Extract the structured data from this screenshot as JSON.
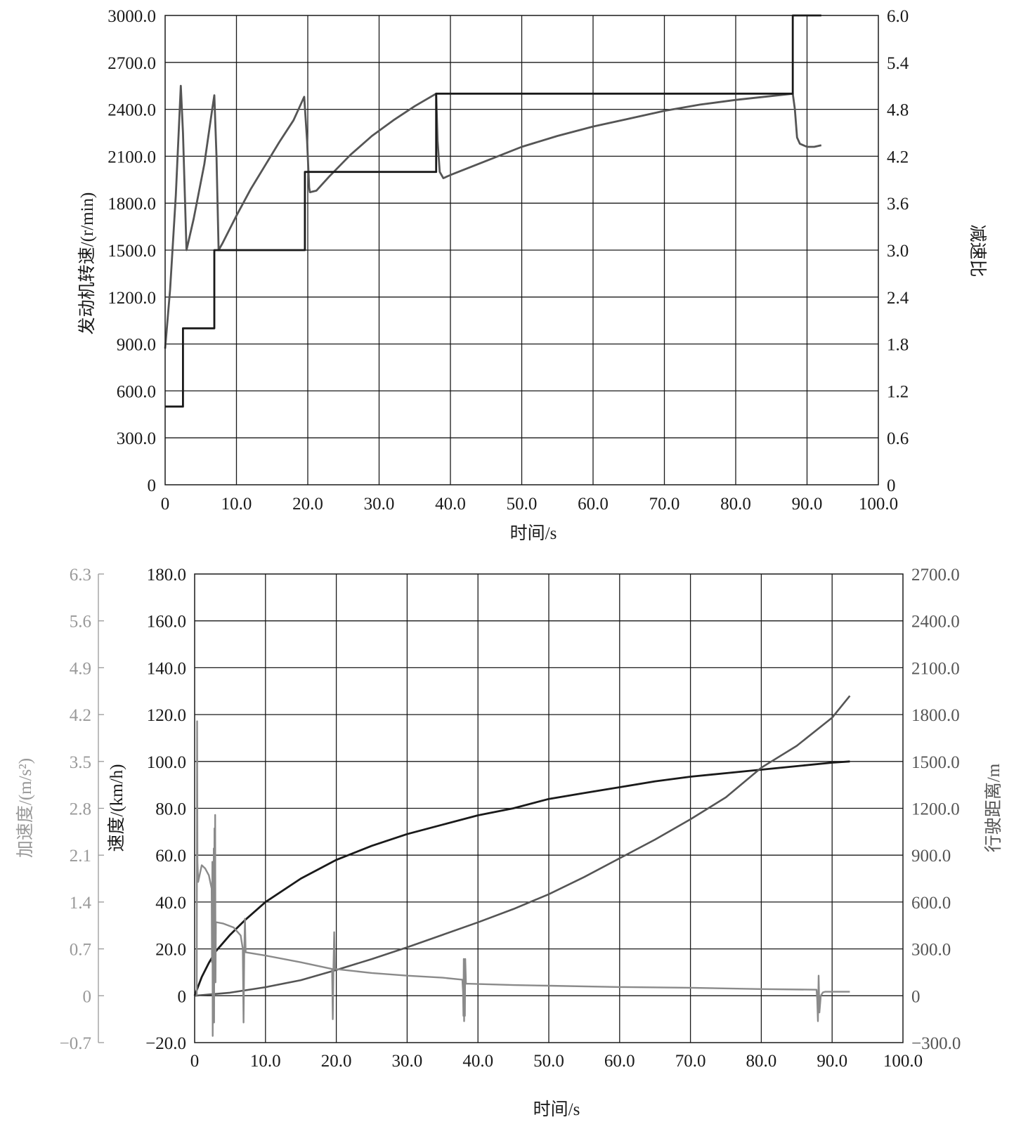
{
  "chart_data": [
    {
      "type": "line",
      "xlabel": "时间/s",
      "ylabel_left": "发动机转速/(r/min)",
      "ylabel_right": "减速比",
      "xlim": [
        0,
        100
      ],
      "ylim_left": [
        0,
        3000
      ],
      "ylim_right": [
        0,
        6
      ],
      "grid": true,
      "x_ticks": [
        "0",
        "10.0",
        "20.0",
        "30.0",
        "40.0",
        "50.0",
        "60.0",
        "70.0",
        "80.0",
        "90.0",
        "100.0"
      ],
      "y_left_ticks": [
        "0",
        "300.0",
        "600.0",
        "900.0",
        "1200.0",
        "1500.0",
        "1800.0",
        "2100.0",
        "2400.0",
        "2700.0",
        "3000.0"
      ],
      "y_right_ticks": [
        "0",
        "0.6",
        "1.2",
        "1.8",
        "2.4",
        "3.0",
        "3.6",
        "4.2",
        "4.8",
        "5.4",
        "6.0"
      ],
      "colors": {
        "engine_speed": "#555555",
        "reduction_ratio": "#1a1a1a"
      },
      "series": [
        {
          "axis": "left",
          "points": [
            [
              0,
              870
            ],
            [
              0.7,
              1250
            ],
            [
              1.5,
              1850
            ],
            [
              2.2,
              2550
            ],
            [
              2.5,
              2250
            ],
            [
              2.9,
              1650
            ],
            [
              3.0,
              1500
            ],
            [
              4.0,
              1700
            ],
            [
              5.5,
              2050
            ],
            [
              6.6,
              2400
            ],
            [
              6.9,
              2490
            ],
            [
              7.2,
              2100
            ],
            [
              7.5,
              1500
            ],
            [
              8.0,
              1540
            ],
            [
              10,
              1720
            ],
            [
              12,
              1890
            ],
            [
              14,
              2040
            ],
            [
              16,
              2190
            ],
            [
              18,
              2330
            ],
            [
              19.5,
              2480
            ],
            [
              19.9,
              2200
            ],
            [
              20.2,
              1900
            ],
            [
              20.3,
              1870
            ],
            [
              21.2,
              1880
            ],
            [
              23,
              1970
            ],
            [
              26,
              2110
            ],
            [
              29,
              2230
            ],
            [
              32,
              2330
            ],
            [
              35,
              2420
            ],
            [
              38,
              2500
            ],
            [
              38.2,
              2200
            ],
            [
              38.5,
              2000
            ],
            [
              39,
              1960
            ],
            [
              40,
              1980
            ],
            [
              45,
              2070
            ],
            [
              50,
              2160
            ],
            [
              55,
              2230
            ],
            [
              60,
              2290
            ],
            [
              65,
              2340
            ],
            [
              70,
              2390
            ],
            [
              75,
              2430
            ],
            [
              80,
              2460
            ],
            [
              85,
              2485
            ],
            [
              88,
              2500
            ],
            [
              88.3,
              2400
            ],
            [
              88.6,
              2220
            ],
            [
              89,
              2180
            ],
            [
              90,
              2160
            ],
            [
              91,
              2160
            ],
            [
              92,
              2170
            ]
          ]
        },
        {
          "axis": "right",
          "points": [
            [
              0,
              1.0
            ],
            [
              2.5,
              1.0
            ],
            [
              2.5,
              2.0
            ],
            [
              6.9,
              2.0
            ],
            [
              6.9,
              3.0
            ],
            [
              19.6,
              3.0
            ],
            [
              19.6,
              4.0
            ],
            [
              38,
              4.0
            ],
            [
              38,
              5.0
            ],
            [
              88,
              5.0
            ],
            [
              88,
              6.0
            ],
            [
              92,
              6.0
            ]
          ]
        }
      ]
    },
    {
      "type": "line",
      "xlabel": "时间/s",
      "ylabel_left_outer": "加速度/(m/s²)",
      "ylabel_left": "速度/(km/h)",
      "ylabel_right": "行驶距离/m",
      "xlim": [
        0,
        100
      ],
      "ylim_left": [
        -20,
        180
      ],
      "ylim_left_outer": [
        -0.7,
        6.3
      ],
      "ylim_right": [
        -300,
        2700
      ],
      "grid": true,
      "x_ticks": [
        "0",
        "10.0",
        "20.0",
        "30.0",
        "40.0",
        "50.0",
        "60.0",
        "70.0",
        "80.0",
        "90.0",
        "100.0"
      ],
      "y_left_ticks": [
        "−20.0",
        "0",
        "20.0",
        "40.0",
        "60.0",
        "80.0",
        "100.0",
        "120.0",
        "140.0",
        "160.0",
        "180.0"
      ],
      "y_left_outer_ticks": [
        "−0.7",
        "0",
        "0.7",
        "1.4",
        "2.1",
        "2.8",
        "3.5",
        "4.2",
        "4.9",
        "5.6",
        "6.3"
      ],
      "y_right_ticks": [
        "−300.0",
        "0",
        "300.0",
        "600.0",
        "900.0",
        "1200.0",
        "1500.0",
        "1800.0",
        "2100.0",
        "2400.0",
        "2700.0"
      ],
      "colors": {
        "speed": "#1a1a1a",
        "distance": "#555555",
        "acceleration": "#8a8a8a",
        "outer_axis": "#999999"
      },
      "series": [
        {
          "axis": "left",
          "points": [
            [
              0,
              0
            ],
            [
              0.5,
              4
            ],
            [
              1,
              8
            ],
            [
              2,
              14
            ],
            [
              3,
              19
            ],
            [
              5,
              26
            ],
            [
              7,
              32
            ],
            [
              10,
              40
            ],
            [
              15,
              50
            ],
            [
              20,
              58
            ],
            [
              25,
              64
            ],
            [
              30,
              69
            ],
            [
              35,
              73
            ],
            [
              40,
              77
            ],
            [
              45,
              80
            ],
            [
              50,
              84
            ],
            [
              55,
              86.5
            ],
            [
              60,
              89
            ],
            [
              65,
              91.5
            ],
            [
              70,
              93.5
            ],
            [
              75,
              95
            ],
            [
              80,
              96.5
            ],
            [
              85,
              98
            ],
            [
              90,
              99.5
            ],
            [
              92.5,
              100
            ]
          ]
        },
        {
          "axis": "right",
          "points": [
            [
              0,
              0
            ],
            [
              5,
              20
            ],
            [
              10,
              55
            ],
            [
              15,
              100
            ],
            [
              20,
              165
            ],
            [
              25,
              235
            ],
            [
              30,
              310
            ],
            [
              35,
              390
            ],
            [
              40,
              470
            ],
            [
              45,
              555
            ],
            [
              50,
              650
            ],
            [
              55,
              760
            ],
            [
              60,
              880
            ],
            [
              65,
              1000
            ],
            [
              70,
              1130
            ],
            [
              75,
              1270
            ],
            [
              80,
              1460
            ],
            [
              85,
              1600
            ],
            [
              90,
              1780
            ],
            [
              92.5,
              1920
            ]
          ]
        },
        {
          "axis": "left_outer",
          "points": [
            [
              0.3,
              0
            ],
            [
              0.35,
              4.1
            ],
            [
              0.4,
              2.0
            ],
            [
              0.5,
              1.7
            ],
            [
              1.0,
              1.95
            ],
            [
              1.5,
              1.9
            ],
            [
              2.0,
              1.8
            ],
            [
              2.4,
              1.6
            ],
            [
              2.45,
              0.5
            ],
            [
              2.5,
              2.0
            ],
            [
              2.55,
              -0.6
            ],
            [
              2.6,
              1.6
            ],
            [
              2.65,
              -0.2
            ],
            [
              2.7,
              2.2
            ],
            [
              2.75,
              -0.4
            ],
            [
              2.8,
              2.5
            ],
            [
              2.85,
              0.3
            ],
            [
              2.9,
              2.7
            ],
            [
              2.95,
              0.2
            ],
            [
              3.0,
              1.1
            ],
            [
              4.0,
              1.08
            ],
            [
              5.5,
              1.02
            ],
            [
              6.5,
              0.9
            ],
            [
              6.8,
              0.7
            ],
            [
              6.9,
              -0.4
            ],
            [
              7.0,
              0.65
            ],
            [
              7.1,
              1.15
            ],
            [
              7.2,
              0.65
            ],
            [
              10,
              0.6
            ],
            [
              15,
              0.5
            ],
            [
              19.4,
              0.4
            ],
            [
              19.5,
              -0.35
            ],
            [
              19.6,
              0.45
            ],
            [
              19.7,
              0.95
            ],
            [
              19.8,
              0.4
            ],
            [
              25,
              0.34
            ],
            [
              30,
              0.3
            ],
            [
              35,
              0.27
            ],
            [
              37.8,
              0.24
            ],
            [
              37.9,
              0.05
            ],
            [
              37.95,
              -0.3
            ],
            [
              38.0,
              0.55
            ],
            [
              38.05,
              -0.38
            ],
            [
              38.1,
              0.5
            ],
            [
              38.15,
              -0.3
            ],
            [
              38.2,
              0.55
            ],
            [
              38.3,
              0.18
            ],
            [
              45,
              0.16
            ],
            [
              50,
              0.15
            ],
            [
              60,
              0.13
            ],
            [
              70,
              0.12
            ],
            [
              80,
              0.1
            ],
            [
              87.8,
              0.09
            ],
            [
              87.9,
              -0.05
            ],
            [
              88.0,
              -0.38
            ],
            [
              88.1,
              0.3
            ],
            [
              88.2,
              -0.25
            ],
            [
              88.4,
              0
            ],
            [
              88.7,
              0.05
            ],
            [
              89,
              0.06
            ],
            [
              90,
              0.06
            ],
            [
              92.5,
              0.06
            ]
          ]
        }
      ]
    }
  ]
}
